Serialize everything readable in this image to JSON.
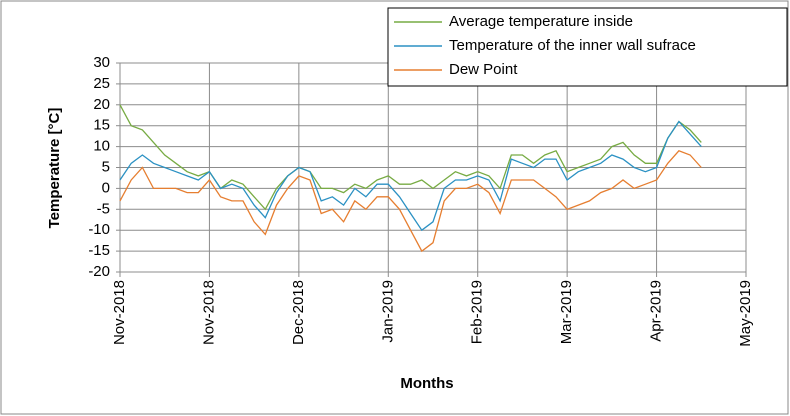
{
  "chart_data": {
    "type": "line",
    "ylabel": "Temperature [°C]",
    "xlabel": "Months",
    "categories": [
      "Nov-2018",
      null,
      null,
      null,
      null,
      null,
      null,
      null,
      "Nov-2018",
      null,
      null,
      null,
      null,
      null,
      null,
      null,
      "Dec-2018",
      null,
      null,
      null,
      null,
      null,
      null,
      null,
      "Jan-2019",
      null,
      null,
      null,
      null,
      null,
      null,
      null,
      "Feb-2019",
      null,
      null,
      null,
      null,
      null,
      null,
      null,
      "Mar-2019",
      null,
      null,
      null,
      null,
      null,
      null,
      null,
      "Apr-2019",
      null,
      null,
      null,
      null,
      null,
      null,
      null,
      "May-2019"
    ],
    "series": [
      {
        "name": "Average temperature inside",
        "color": "#77ab43",
        "values": [
          20,
          15,
          14,
          11,
          8,
          6,
          4,
          3,
          4,
          0,
          2,
          1,
          -2,
          -5,
          0,
          3,
          5,
          4,
          0,
          0,
          -1,
          1,
          0,
          2,
          3,
          1,
          1,
          2,
          0,
          2,
          4,
          3,
          4,
          3,
          0,
          8,
          8,
          6,
          8,
          9,
          4,
          5,
          6,
          7,
          10,
          11,
          8,
          6,
          6,
          12,
          16,
          14,
          11,
          null,
          null,
          null,
          null
        ]
      },
      {
        "name": "Temperature of the inner wall sufrace",
        "color": "#2b91c3",
        "values": [
          2,
          6,
          8,
          6,
          5,
          4,
          3,
          2,
          4,
          0,
          1,
          0,
          -4,
          -7,
          -1,
          3,
          5,
          4,
          -3,
          -2,
          -4,
          0,
          -2,
          1,
          1,
          -2,
          -6,
          -10,
          -8,
          0,
          2,
          2,
          3,
          2,
          -3,
          7,
          6,
          5,
          7,
          7,
          2,
          4,
          5,
          6,
          8,
          7,
          5,
          4,
          5,
          12,
          16,
          13,
          10,
          null,
          null,
          null,
          null
        ]
      },
      {
        "name": "Dew Point",
        "color": "#e67e30",
        "values": [
          -3,
          2,
          5,
          0,
          0,
          0,
          -1,
          -1,
          2,
          -2,
          -3,
          -3,
          -8,
          -11,
          -4,
          0,
          3,
          2,
          -6,
          -5,
          -8,
          -3,
          -5,
          -2,
          -2,
          -5,
          -10,
          -15,
          -13,
          -3,
          0,
          0,
          1,
          -1,
          -6,
          2,
          2,
          2,
          0,
          -2,
          -5,
          -4,
          -3,
          -1,
          0,
          2,
          0,
          1,
          2,
          6,
          9,
          8,
          5,
          null,
          null,
          null,
          null
        ]
      }
    ],
    "ylim": [
      -20,
      30
    ],
    "yticks": [
      -20,
      -15,
      -10,
      -5,
      0,
      5,
      10,
      15,
      20,
      25,
      30
    ],
    "grid": true,
    "legend": "upper right"
  }
}
